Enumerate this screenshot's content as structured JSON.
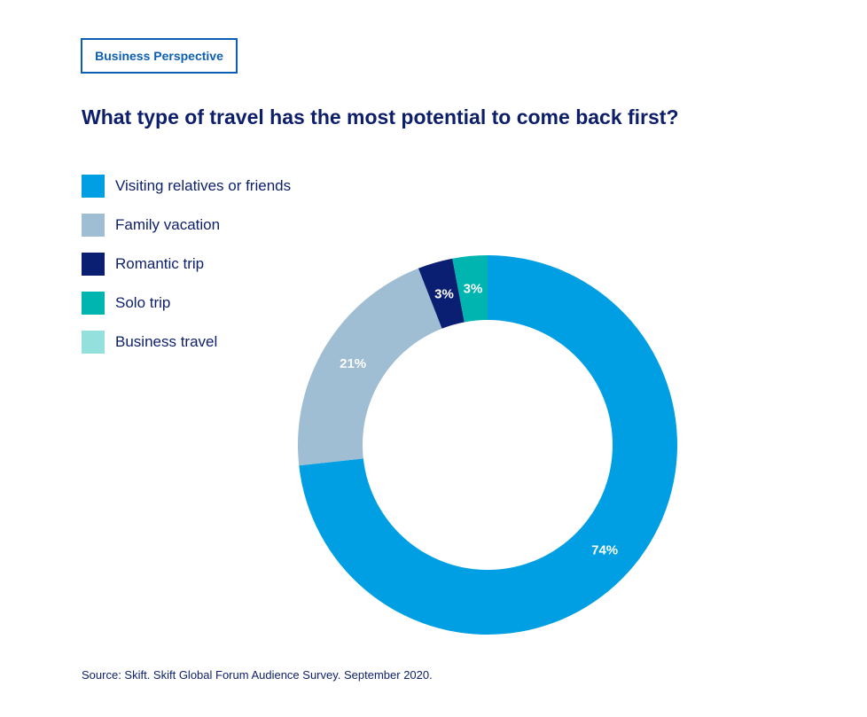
{
  "header": {
    "tag": "Business Perspective"
  },
  "chart_data": {
    "type": "pie",
    "variant": "donut",
    "title": "What type of travel has the most potential to come back first?",
    "categories": [
      "Visiting relatives or friends",
      "Family vacation",
      "Romantic trip",
      "Solo trip",
      "Business travel"
    ],
    "values": [
      74,
      21,
      3,
      3,
      0
    ],
    "value_labels": [
      "74%",
      "21%",
      "3%",
      "3%",
      ""
    ],
    "colors": [
      "#009fe3",
      "#9fbdd3",
      "#0b1f72",
      "#00b5b0",
      "#94e0dc"
    ],
    "legend_position": "top-left"
  },
  "footer": {
    "source": "Source: Skift. Skift Global Forum Audience Survey. September 2020."
  }
}
